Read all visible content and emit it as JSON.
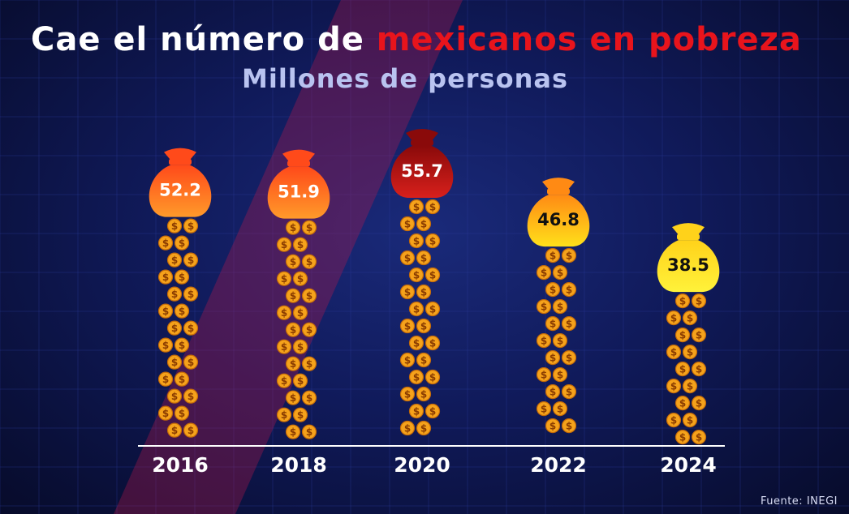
{
  "title_part1": "Cae el número de ",
  "title_part2": "mexicanos en pobreza",
  "subtitle": "Millones de personas",
  "source": "Fuente: INEGI",
  "colors": {
    "title_highlight": "#e8141c",
    "background": "#0b1036",
    "baseline": "#ffffff",
    "coin": "#f5a21b"
  },
  "icons": {
    "bag": "money-bag-icon",
    "coin": "dollar-coin-icon"
  },
  "chart_data": {
    "type": "bar",
    "categories": [
      "2016",
      "2018",
      "2020",
      "2022",
      "2024"
    ],
    "values": [
      52.2,
      51.9,
      55.7,
      46.8,
      38.5
    ],
    "value_labels": [
      "52.2",
      "51.9",
      "55.7",
      "46.8",
      "38.5"
    ],
    "bag_colors": [
      [
        "#ff4a1a",
        "#ff9a2a"
      ],
      [
        "#ff4a1a",
        "#ff9a2a"
      ],
      [
        "#8a0a0a",
        "#d8201c"
      ],
      [
        "#ff8a14",
        "#ffe01a"
      ],
      [
        "#ffd21a",
        "#fff23a"
      ]
    ],
    "title": "Cae el número de mexicanos en pobreza",
    "subtitle": "Millones de personas",
    "xlabel": "",
    "ylabel": ""
  }
}
